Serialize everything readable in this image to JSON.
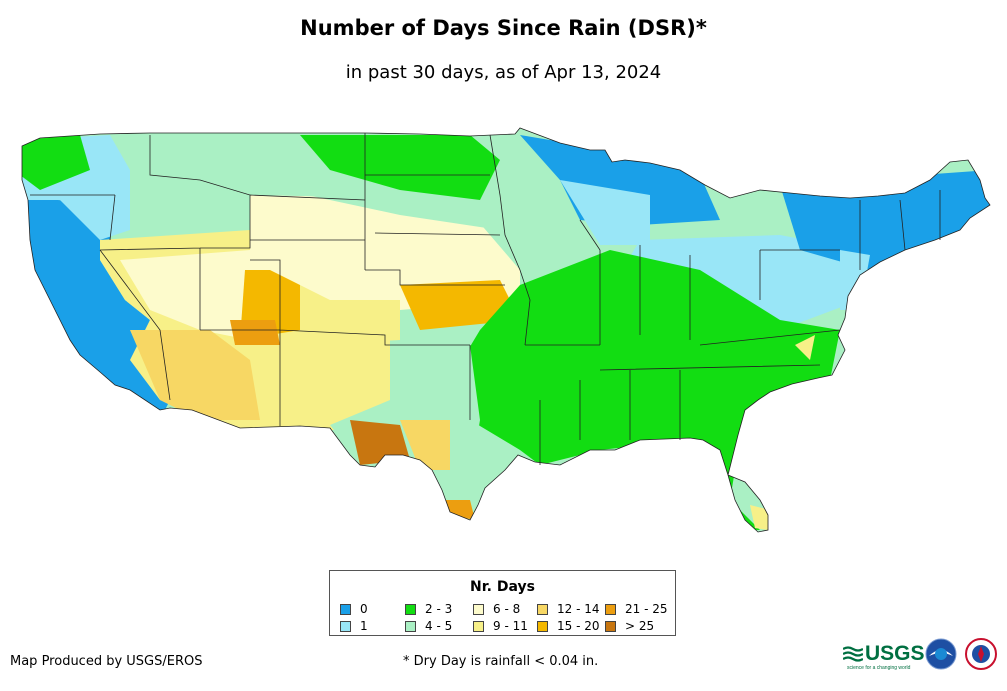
{
  "title": "Number of Days Since Rain (DSR)*",
  "subtitle": "in past 30 days, as of Apr 13, 2024",
  "legend": {
    "title": "Nr. Days",
    "items": [
      {
        "label": "0",
        "color": "#1aa0e8"
      },
      {
        "label": "1",
        "color": "#99e6f7"
      },
      {
        "label": "2 - 3",
        "color": "#12dd12"
      },
      {
        "label": "4 - 5",
        "color": "#aaf0c4"
      },
      {
        "label": "6 - 8",
        "color": "#fdfbcc"
      },
      {
        "label": "9 - 11",
        "color": "#f7f088"
      },
      {
        "label": "12 - 14",
        "color": "#f7d764"
      },
      {
        "label": "15 - 20",
        "color": "#f4b800"
      },
      {
        "label": "21 - 25",
        "color": "#ec9e10"
      },
      {
        "label": "> 25",
        "color": "#c87610"
      }
    ]
  },
  "credit": "Map Produced by USGS/EROS",
  "footnote": "* Dry Day is rainfall < 0.04 in.",
  "logos": {
    "usgs": "USGS",
    "usgs_tagline": "science for a changing world",
    "noaa": "noaa-seal-icon",
    "nws": "nws-seal-icon"
  }
}
